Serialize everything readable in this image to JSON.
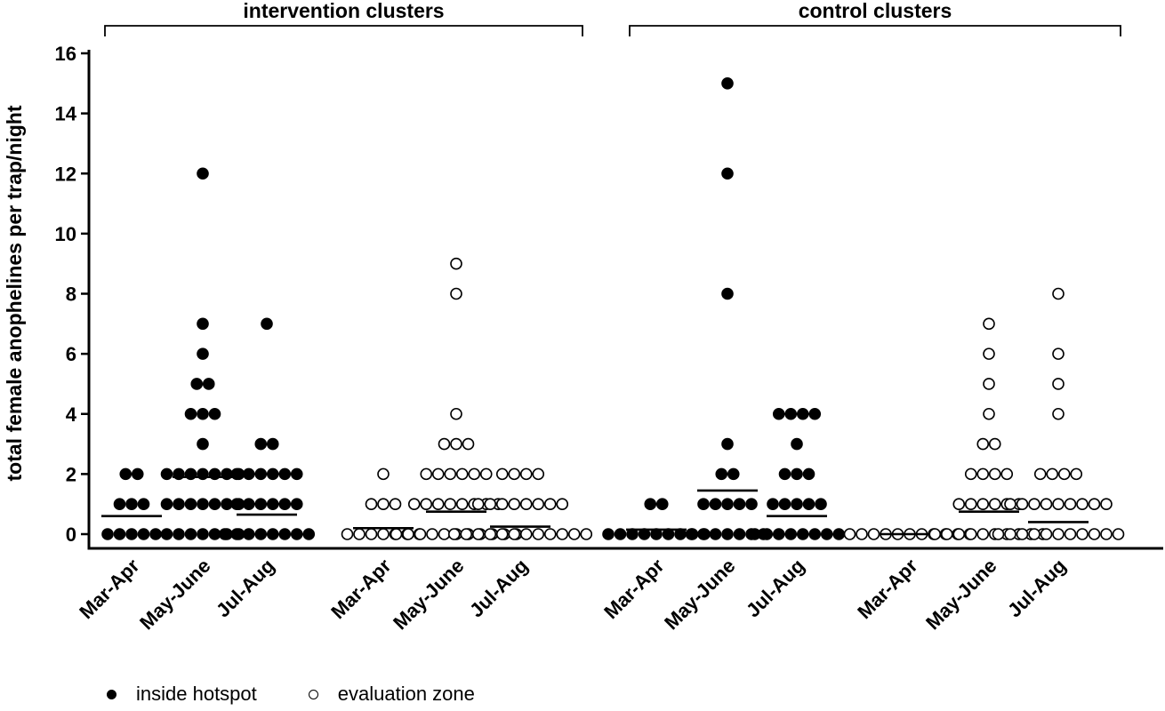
{
  "chart_data": {
    "type": "scatter",
    "ylabel": "total female anophelines per trap/night",
    "ylim": [
      0,
      16
    ],
    "yticks": [
      0,
      2,
      4,
      6,
      8,
      10,
      12,
      14,
      16
    ],
    "grid": false,
    "legend_position": "bottom-left",
    "cluster_groups": [
      {
        "label": "intervention clusters",
        "columns": [
          0,
          1,
          2,
          3,
          4,
          5
        ]
      },
      {
        "label": "control clusters",
        "columns": [
          6,
          7,
          8,
          9,
          10,
          11
        ]
      }
    ],
    "series": [
      {
        "name": "inside hotspot",
        "marker": "filled"
      },
      {
        "name": "evaluation zone",
        "marker": "open"
      }
    ],
    "columns": [
      {
        "group": "intervention clusters",
        "period": "Mar-Apr",
        "series": "inside hotspot",
        "mean": 0.6,
        "values": [
          2,
          2,
          1,
          1,
          1,
          0,
          0,
          0,
          0,
          0
        ]
      },
      {
        "group": "intervention clusters",
        "period": "May-June",
        "series": "inside hotspot",
        "mean": 1.9,
        "values": [
          12,
          7,
          6,
          5,
          5,
          4,
          4,
          4,
          3,
          2,
          2,
          2,
          2,
          2,
          2,
          2,
          1,
          1,
          1,
          1,
          1,
          1,
          1,
          0,
          0,
          0,
          0,
          0,
          0,
          0
        ]
      },
      {
        "group": "intervention clusters",
        "period": "Jul-Aug",
        "series": "inside hotspot",
        "mean": 0.65,
        "values": [
          7,
          3,
          3,
          2,
          2,
          2,
          2,
          2,
          2,
          1,
          1,
          1,
          1,
          1,
          1,
          0,
          0,
          0,
          0,
          0,
          0,
          0,
          0
        ]
      },
      {
        "group": "intervention clusters",
        "period": "Mar-Apr",
        "series": "evaluation zone",
        "mean": 0.2,
        "values": [
          2,
          1,
          1,
          1,
          0,
          0,
          0,
          0,
          0,
          0,
          0
        ]
      },
      {
        "group": "intervention clusters",
        "period": "May-June",
        "series": "evaluation zone",
        "mean": 0.75,
        "values": [
          9,
          8,
          4,
          3,
          3,
          3,
          2,
          2,
          2,
          2,
          2,
          2,
          1,
          1,
          1,
          1,
          1,
          1,
          1,
          1,
          0,
          0,
          0,
          0,
          0,
          0,
          0,
          0,
          0,
          0,
          0
        ]
      },
      {
        "group": "intervention clusters",
        "period": "Jul-Aug",
        "series": "evaluation zone",
        "mean": 0.25,
        "values": [
          2,
          2,
          2,
          2,
          1,
          1,
          1,
          1,
          1,
          1,
          1,
          1,
          0,
          0,
          0,
          0,
          0,
          0,
          0,
          0,
          0,
          0,
          0,
          0
        ]
      },
      {
        "group": "control clusters",
        "period": "Mar-Apr",
        "series": "inside hotspot",
        "mean": 0.15,
        "values": [
          1,
          1,
          0,
          0,
          0,
          0,
          0,
          0,
          0,
          0,
          0
        ]
      },
      {
        "group": "control clusters",
        "period": "May-June",
        "series": "inside hotspot",
        "mean": 1.45,
        "values": [
          15,
          12,
          8,
          3,
          2,
          2,
          1,
          1,
          1,
          1,
          1,
          0,
          0,
          0,
          0,
          0,
          0,
          0
        ]
      },
      {
        "group": "control clusters",
        "period": "Jul-Aug",
        "series": "inside hotspot",
        "mean": 0.6,
        "values": [
          4,
          4,
          4,
          4,
          3,
          2,
          2,
          2,
          1,
          1,
          1,
          1,
          1,
          0,
          0,
          0,
          0,
          0,
          0,
          0,
          0
        ]
      },
      {
        "group": "control clusters",
        "period": "Mar-Apr",
        "series": "evaluation zone",
        "mean": 0.0,
        "values": [
          0,
          0,
          0,
          0,
          0,
          0,
          0,
          0,
          0,
          0,
          0
        ]
      },
      {
        "group": "control clusters",
        "period": "May-June",
        "series": "evaluation zone",
        "mean": 0.75,
        "values": [
          7,
          6,
          5,
          4,
          3,
          3,
          2,
          2,
          2,
          2,
          1,
          1,
          1,
          1,
          1,
          1,
          0,
          0,
          0,
          0,
          0,
          0,
          0,
          0,
          0,
          0
        ]
      },
      {
        "group": "control clusters",
        "period": "Jul-Aug",
        "series": "evaluation zone",
        "mean": 0.4,
        "values": [
          8,
          6,
          5,
          4,
          2,
          2,
          2,
          2,
          1,
          1,
          1,
          1,
          1,
          1,
          1,
          1,
          1,
          0,
          0,
          0,
          0,
          0,
          0,
          0,
          0,
          0,
          0,
          0
        ]
      }
    ]
  }
}
